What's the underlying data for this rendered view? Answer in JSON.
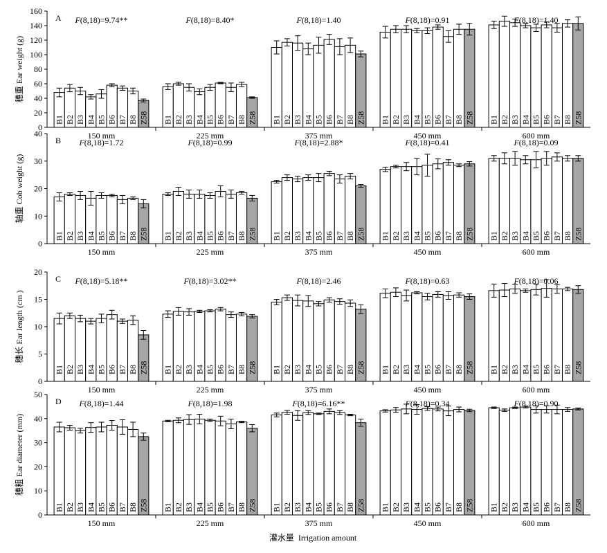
{
  "figure": {
    "groups": [
      "150 mm",
      "225 mm",
      "375 mm",
      "450 mm",
      "600 mm"
    ],
    "xlabel_cn": "灌水量",
    "xlabel_en": "Irrigation amount"
  },
  "chart_data": [
    {
      "type": "bar",
      "panel": "A",
      "ylabel_cn": "穗重",
      "ylabel_en": "Ear weight (g)",
      "ylim": [
        0,
        160
      ],
      "yticks": [
        0,
        20,
        40,
        60,
        80,
        100,
        120,
        140,
        160
      ],
      "categories": [
        "B1",
        "B2",
        "B3",
        "B4",
        "B5",
        "B6",
        "B7",
        "B8",
        "Z58"
      ],
      "groups": [
        {
          "label": "150 mm",
          "f_text": "(8,18)=9.74**",
          "values": [
            48,
            54,
            50,
            42,
            46,
            58,
            54,
            50,
            37
          ],
          "errors": [
            6,
            5,
            5,
            3,
            6,
            2,
            3,
            4,
            2
          ]
        },
        {
          "label": "225 mm",
          "f_text": "(8,18)=8.40*",
          "values": [
            56,
            60,
            55,
            49,
            55,
            61,
            55,
            59,
            41
          ],
          "errors": [
            4,
            2,
            5,
            4,
            4,
            1,
            6,
            3,
            1
          ]
        },
        {
          "label": "375 mm",
          "f_text": "(8,18)=1.40",
          "values": [
            110,
            117,
            116,
            108,
            113,
            121,
            111,
            113,
            101
          ],
          "errors": [
            9,
            5,
            10,
            8,
            11,
            7,
            11,
            10,
            4
          ]
        },
        {
          "label": "450 mm",
          "f_text": "(8,18)=0.91",
          "values": [
            131,
            135,
            135,
            133,
            133,
            138,
            125,
            135,
            135
          ],
          "errors": [
            8,
            5,
            5,
            3,
            4,
            3,
            8,
            7,
            8
          ]
        },
        {
          "label": "600 mm",
          "f_text": "(8,18)=1.40",
          "values": [
            141,
            146,
            144,
            140,
            137,
            141,
            137,
            143,
            143
          ],
          "errors": [
            5,
            7,
            5,
            3,
            5,
            4,
            6,
            5,
            9
          ]
        }
      ]
    },
    {
      "type": "bar",
      "panel": "B",
      "ylabel_cn": "轴重",
      "ylabel_en": "Cob weight (g)",
      "ylim": [
        0,
        40
      ],
      "yticks": [
        0,
        10,
        20,
        30,
        40
      ],
      "categories": [
        "B1",
        "B2",
        "B3",
        "B4",
        "B5",
        "B6",
        "B7",
        "B8",
        "Z58"
      ],
      "groups": [
        {
          "label": "150 mm",
          "f_text": "(8,18)=1.72",
          "values": [
            17,
            18,
            17.5,
            16.5,
            17.5,
            17.5,
            16,
            16.5,
            14.5
          ],
          "errors": [
            1.5,
            0.5,
            1.5,
            2.5,
            1,
            0.5,
            1.5,
            0.5,
            1.5
          ]
        },
        {
          "label": "225 mm",
          "f_text": "(8,18)=0.99",
          "values": [
            18,
            19,
            18,
            18,
            17.5,
            19,
            18,
            18.5,
            16.5
          ],
          "errors": [
            0.5,
            1.5,
            1.5,
            1.5,
            1,
            2,
            1.5,
            0.5,
            1
          ]
        },
        {
          "label": "375 mm",
          "f_text": "(8,18)=2.88*",
          "values": [
            22.5,
            24,
            23.5,
            24,
            24,
            25.5,
            23.5,
            24.5,
            21
          ],
          "errors": [
            0.5,
            1,
            1,
            1,
            1.5,
            0.8,
            1.5,
            1,
            0.5
          ]
        },
        {
          "label": "450 mm",
          "f_text": "(8,18)=0.41",
          "values": [
            27,
            28,
            28,
            28,
            28.5,
            29,
            29.5,
            28.5,
            29
          ],
          "errors": [
            0.8,
            0.5,
            1.5,
            3,
            4,
            1.8,
            1,
            0.5,
            0.8
          ]
        },
        {
          "label": "600 mm",
          "f_text": "(8,18)=0.09",
          "values": [
            31,
            31,
            31,
            30.5,
            30.5,
            31,
            31.5,
            31,
            31
          ],
          "errors": [
            1,
            2,
            2.5,
            1.5,
            3,
            2.5,
            1.5,
            1,
            1
          ]
        }
      ]
    },
    {
      "type": "bar",
      "panel": "C",
      "ylabel_cn": "穗长",
      "ylabel_en": "Ear length (cm )",
      "ylim": [
        0,
        20
      ],
      "yticks": [
        0,
        5,
        10,
        15,
        20
      ],
      "categories": [
        "B1",
        "B2",
        "B3",
        "B4",
        "B5",
        "B6",
        "B7",
        "B8",
        "Z58"
      ],
      "groups": [
        {
          "label": "150 mm",
          "f_text": "(8,18)=5.18**",
          "values": [
            11.5,
            12,
            11.5,
            11,
            11.5,
            12.2,
            11,
            11.2,
            8.5
          ],
          "errors": [
            1,
            0.5,
            0.6,
            0.5,
            0.8,
            0.8,
            0.4,
            0.8,
            0.8
          ]
        },
        {
          "label": "225 mm",
          "f_text": "(8,18)=3.02**",
          "values": [
            12.3,
            12.8,
            12.7,
            12.8,
            12.9,
            13.2,
            12.2,
            12.3,
            11.9
          ],
          "errors": [
            0.6,
            0.7,
            0.6,
            0.2,
            0.2,
            0.3,
            0.5,
            0.3,
            0.3
          ]
        },
        {
          "label": "375 mm",
          "f_text": "(8,18)=2.46",
          "values": [
            14.5,
            15.3,
            14.8,
            14.7,
            14.2,
            14.9,
            14.6,
            14.3,
            13.2
          ],
          "errors": [
            0.5,
            0.5,
            1,
            1,
            0.4,
            0.4,
            0.5,
            0.6,
            0.8
          ]
        },
        {
          "label": "450 mm",
          "f_text": "(8,18)=0.63",
          "values": [
            16.1,
            16.3,
            15.7,
            16.2,
            15.5,
            15.9,
            15.7,
            15.8,
            15.5
          ],
          "errors": [
            0.8,
            0.8,
            1,
            0.2,
            0.6,
            0.5,
            0.7,
            0.4,
            0.5
          ]
        },
        {
          "label": "600 mm",
          "f_text": "(8,18)=0.06",
          "values": [
            16.6,
            16.7,
            16.9,
            16.6,
            16.8,
            17.0,
            16.9,
            16.9,
            16.8
          ],
          "errors": [
            1.2,
            1.2,
            0.8,
            0.3,
            1,
            1.6,
            0.8,
            0.3,
            0.7
          ]
        }
      ]
    },
    {
      "type": "bar",
      "panel": "D",
      "ylabel_cn": "穗粗",
      "ylabel_en": "Ear diameter (mm)",
      "ylim": [
        0,
        50
      ],
      "yticks": [
        0,
        10,
        20,
        30,
        40,
        50
      ],
      "categories": [
        "B1",
        "B2",
        "B3",
        "B4",
        "B5",
        "B6",
        "B7",
        "B8",
        "Z58"
      ],
      "groups": [
        {
          "label": "150 mm",
          "f_text": "(8,18)=1.44",
          "values": [
            36.5,
            36.2,
            35,
            36.3,
            36.5,
            37.2,
            36.5,
            35.5,
            32.5
          ],
          "errors": [
            2,
            1,
            1,
            2,
            2,
            2,
            3,
            3,
            1.5
          ]
        },
        {
          "label": "225 mm",
          "f_text": "(8,18)=1.98",
          "values": [
            39,
            39.3,
            39.6,
            39.8,
            39.3,
            39,
            37.8,
            38.6,
            36
          ],
          "errors": [
            0.3,
            1,
            2,
            2,
            0.5,
            2,
            2,
            0.3,
            1.5
          ]
        },
        {
          "label": "375 mm",
          "f_text": "(8,18)=6.16**",
          "values": [
            41.5,
            42.6,
            41.3,
            42.5,
            42,
            43,
            42.5,
            41.5,
            38.3
          ],
          "errors": [
            0.8,
            0.8,
            2,
            0.8,
            0.3,
            1,
            0.8,
            0.3,
            1.5
          ]
        },
        {
          "label": "450 mm",
          "f_text": "(8,18)=0.34",
          "values": [
            43.2,
            43.6,
            44,
            43.8,
            44.2,
            44,
            43.2,
            43.8,
            43.4
          ],
          "errors": [
            0.5,
            1,
            2,
            2,
            0.8,
            0.8,
            2,
            1,
            0.5
          ]
        },
        {
          "label": "600 mm",
          "f_text": "(8,18)=0.90",
          "values": [
            44.5,
            43.5,
            44.5,
            44.8,
            43.8,
            43.8,
            43.8,
            43.8,
            44
          ],
          "errors": [
            0.3,
            0.5,
            0.3,
            0.4,
            1.5,
            1.5,
            1.8,
            0.8,
            0.4
          ]
        }
      ]
    }
  ]
}
